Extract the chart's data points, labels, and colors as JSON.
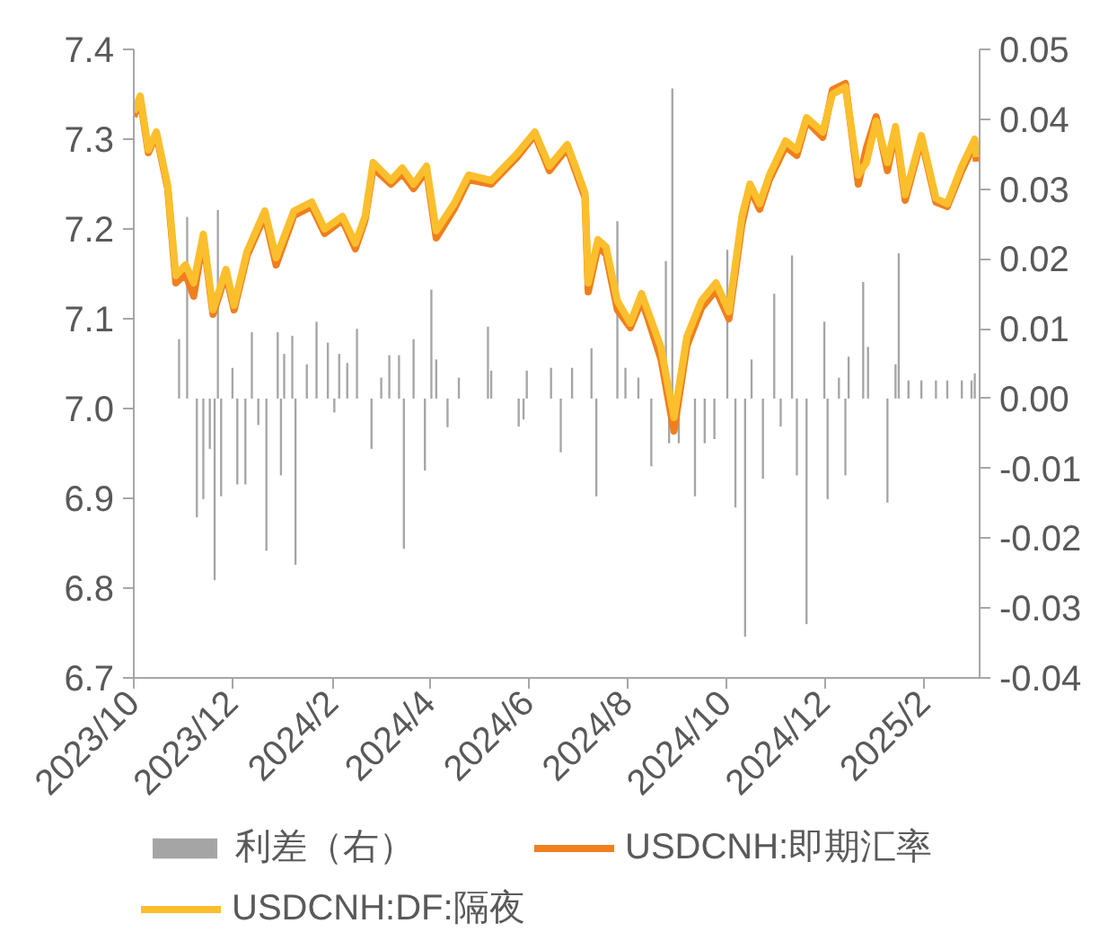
{
  "chart_data": {
    "type": "line",
    "xlim": [
      "2023-10-01",
      "2025-03-07"
    ],
    "xticks": [
      {
        "value": "2023-10-01",
        "label": "2023/10"
      },
      {
        "value": "2023-12-01",
        "label": "2023/12"
      },
      {
        "value": "2024-02-01",
        "label": "2024/2"
      },
      {
        "value": "2024-04-01",
        "label": "2024/4"
      },
      {
        "value": "2024-06-01",
        "label": "2024/6"
      },
      {
        "value": "2024-08-01",
        "label": "2024/8"
      },
      {
        "value": "2024-10-01",
        "label": "2024/10"
      },
      {
        "value": "2024-12-01",
        "label": "2024/12"
      },
      {
        "value": "2025-02-01",
        "label": "2025/2"
      }
    ],
    "ylim": [
      6.7,
      7.4
    ],
    "yticks": [
      6.7,
      6.8,
      6.9,
      {
        "value": 7.0,
        "label": "7.0"
      },
      7.1,
      7.2,
      7.3,
      7.4
    ],
    "y2lim": [
      -0.04,
      0.05
    ],
    "y2ticks": [
      -0.04,
      -0.03,
      -0.02,
      -0.01,
      {
        "value": 0.0,
        "label": "0.00"
      },
      0.01,
      0.02,
      0.03,
      0.04,
      0.05
    ],
    "grid": false,
    "legend": "bottom",
    "series": [
      {
        "name": "利差（右）",
        "type": "bar",
        "axis": "y2",
        "color": "#a5a5a5",
        "x": [
          "2023-10-29",
          "2023-11-03",
          "2023-11-09",
          "2023-11-13",
          "2023-11-17",
          "2023-11-20",
          "2023-11-22",
          "2023-11-24",
          "2023-12-01",
          "2023-12-04",
          "2023-12-09",
          "2023-12-13",
          "2023-12-17",
          "2023-12-22",
          "2023-12-29",
          "2023-12-31",
          "2024-01-02",
          "2024-01-07",
          "2024-01-09",
          "2024-01-16",
          "2024-01-22",
          "2024-01-29",
          "2024-02-02",
          "2024-02-05",
          "2024-02-10",
          "2024-02-16",
          "2024-02-25",
          "2024-03-02",
          "2024-03-07",
          "2024-03-13",
          "2024-03-16",
          "2024-03-22",
          "2024-03-29",
          "2024-04-02",
          "2024-04-05",
          "2024-04-12",
          "2024-04-19",
          "2024-05-07",
          "2024-05-09",
          "2024-05-26",
          "2024-05-29",
          "2024-05-31",
          "2024-06-15",
          "2024-06-21",
          "2024-06-28",
          "2024-07-10",
          "2024-07-13",
          "2024-07-26",
          "2024-07-31",
          "2024-08-08",
          "2024-08-16",
          "2024-08-25",
          "2024-08-27",
          "2024-08-29",
          "2024-09-02",
          "2024-09-12",
          "2024-09-18",
          "2024-09-24",
          "2024-10-02",
          "2024-10-07",
          "2024-10-13",
          "2024-10-17",
          "2024-10-24",
          "2024-10-31",
          "2024-11-04",
          "2024-11-11",
          "2024-11-14",
          "2024-11-20",
          "2024-12-01",
          "2024-12-03",
          "2024-12-10",
          "2024-12-14",
          "2024-12-16",
          "2024-12-25",
          "2024-12-28",
          "2025-01-09",
          "2025-01-14",
          "2025-01-16",
          "2025-01-22",
          "2025-01-30",
          "2025-02-08",
          "2025-02-15",
          "2025-02-24",
          "2025-03-02",
          "2025-03-04"
        ],
        "values": [
          0.0085,
          0.026,
          -0.017,
          -0.0144,
          -0.0072,
          -0.026,
          0.027,
          -0.014,
          0.0044,
          -0.0123,
          -0.0123,
          0.0095,
          -0.0038,
          -0.0218,
          0.0095,
          -0.011,
          0.0064,
          0.009,
          -0.0238,
          0.0049,
          0.011,
          0.008,
          -0.002,
          0.0064,
          0.0051,
          0.01,
          -0.0072,
          0.003,
          0.0062,
          0.0062,
          -0.0215,
          0.0085,
          -0.0103,
          0.0156,
          0.0056,
          -0.0041,
          0.003,
          0.0103,
          0.004,
          -0.004,
          -0.003,
          0.004,
          0.0044,
          -0.0077,
          0.0044,
          0.0072,
          -0.014,
          0.0254,
          0.0044,
          0.003,
          -0.0097,
          0.0197,
          -0.0064,
          0.0444,
          -0.0064,
          -0.014,
          -0.0064,
          -0.0058,
          0.0213,
          -0.0156,
          -0.0341,
          0.0056,
          -0.0115,
          0.015,
          -0.004,
          0.0205,
          -0.011,
          -0.0323,
          0.011,
          -0.0144,
          0.003,
          -0.011,
          0.006,
          0.0167,
          0.0074,
          -0.0149,
          0.0049,
          0.0208,
          0.0026,
          0.0026,
          0.0026,
          0.0026,
          0.0026,
          0.0026,
          0.0036
        ]
      },
      {
        "name": "USDCNH:即期汇率",
        "color": "#f07f1e",
        "x": [
          "2023-10-01",
          "2023-10-05",
          "2023-10-10",
          "2023-10-15",
          "2023-10-22",
          "2023-10-27",
          "2023-11-02",
          "2023-11-07",
          "2023-11-13",
          "2023-11-19",
          "2023-11-27",
          "2023-12-02",
          "2023-12-10",
          "2023-12-21",
          "2023-12-28",
          "2024-01-08",
          "2024-01-19",
          "2024-01-27",
          "2024-02-07",
          "2024-02-15",
          "2024-02-21",
          "2024-02-26",
          "2024-03-08",
          "2024-03-15",
          "2024-03-22",
          "2024-03-30",
          "2024-04-05",
          "2024-04-16",
          "2024-04-25",
          "2024-05-09",
          "2024-05-25",
          "2024-06-05",
          "2024-06-14",
          "2024-06-25",
          "2024-06-30",
          "2024-07-06",
          "2024-07-08",
          "2024-07-14",
          "2024-07-19",
          "2024-07-26",
          "2024-08-03",
          "2024-08-10",
          "2024-08-14",
          "2024-08-22",
          "2024-08-30",
          "2024-09-07",
          "2024-09-16",
          "2024-09-25",
          "2024-10-03",
          "2024-10-11",
          "2024-10-16",
          "2024-10-22",
          "2024-10-28",
          "2024-11-07",
          "2024-11-14",
          "2024-11-20",
          "2024-11-30",
          "2024-12-06",
          "2024-12-14",
          "2024-12-22",
          "2024-12-27",
          "2025-01-02",
          "2025-01-09",
          "2025-01-14",
          "2025-01-20",
          "2025-01-30",
          "2025-02-08",
          "2025-02-15",
          "2025-02-24",
          "2025-03-04",
          "2025-03-05"
        ],
        "values": [
          7.325,
          7.345,
          7.285,
          7.305,
          7.245,
          7.14,
          7.15,
          7.125,
          7.19,
          7.105,
          7.15,
          7.11,
          7.17,
          7.215,
          7.16,
          7.215,
          7.225,
          7.195,
          7.21,
          7.178,
          7.21,
          7.268,
          7.25,
          7.262,
          7.245,
          7.265,
          7.19,
          7.222,
          7.255,
          7.25,
          7.28,
          7.305,
          7.265,
          7.29,
          7.265,
          7.235,
          7.13,
          7.18,
          7.172,
          7.11,
          7.09,
          7.12,
          7.1,
          7.055,
          6.975,
          7.07,
          7.112,
          7.132,
          7.1,
          7.205,
          7.245,
          7.222,
          7.255,
          7.292,
          7.282,
          7.32,
          7.302,
          7.355,
          7.362,
          7.25,
          7.29,
          7.325,
          7.265,
          7.31,
          7.232,
          7.3,
          7.23,
          7.225,
          7.265,
          7.295,
          7.275
        ]
      },
      {
        "name": "USDCNH:DF:隔夜",
        "color": "#fbbf2d",
        "x": [
          "2023-10-01",
          "2023-10-05",
          "2023-10-10",
          "2023-10-15",
          "2023-10-22",
          "2023-10-27",
          "2023-11-02",
          "2023-11-07",
          "2023-11-13",
          "2023-11-19",
          "2023-11-27",
          "2023-12-02",
          "2023-12-10",
          "2023-12-21",
          "2023-12-28",
          "2024-01-08",
          "2024-01-19",
          "2024-01-27",
          "2024-02-07",
          "2024-02-15",
          "2024-02-21",
          "2024-02-26",
          "2024-03-08",
          "2024-03-15",
          "2024-03-22",
          "2024-03-30",
          "2024-04-05",
          "2024-04-16",
          "2024-04-25",
          "2024-05-09",
          "2024-05-25",
          "2024-06-05",
          "2024-06-14",
          "2024-06-25",
          "2024-06-30",
          "2024-07-06",
          "2024-07-08",
          "2024-07-14",
          "2024-07-19",
          "2024-07-26",
          "2024-08-03",
          "2024-08-10",
          "2024-08-14",
          "2024-08-22",
          "2024-08-30",
          "2024-09-07",
          "2024-09-16",
          "2024-09-25",
          "2024-10-03",
          "2024-10-11",
          "2024-10-16",
          "2024-10-22",
          "2024-10-28",
          "2024-11-07",
          "2024-11-14",
          "2024-11-20",
          "2024-11-30",
          "2024-12-06",
          "2024-12-14",
          "2024-12-22",
          "2024-12-27",
          "2025-01-02",
          "2025-01-09",
          "2025-01-14",
          "2025-01-20",
          "2025-01-30",
          "2025-02-08",
          "2025-02-15",
          "2025-02-24",
          "2025-03-04",
          "2025-03-05"
        ],
        "values": [
          7.33,
          7.348,
          7.288,
          7.308,
          7.248,
          7.148,
          7.16,
          7.14,
          7.194,
          7.11,
          7.155,
          7.115,
          7.175,
          7.22,
          7.168,
          7.22,
          7.23,
          7.2,
          7.214,
          7.184,
          7.214,
          7.274,
          7.254,
          7.268,
          7.25,
          7.27,
          7.198,
          7.228,
          7.26,
          7.254,
          7.284,
          7.308,
          7.27,
          7.294,
          7.27,
          7.24,
          7.14,
          7.188,
          7.18,
          7.12,
          7.095,
          7.128,
          7.108,
          7.068,
          6.99,
          7.08,
          7.12,
          7.14,
          7.108,
          7.214,
          7.25,
          7.228,
          7.26,
          7.298,
          7.288,
          7.324,
          7.308,
          7.35,
          7.358,
          7.26,
          7.274,
          7.32,
          7.274,
          7.314,
          7.238,
          7.304,
          7.234,
          7.228,
          7.27,
          7.3,
          7.28
        ]
      }
    ]
  }
}
